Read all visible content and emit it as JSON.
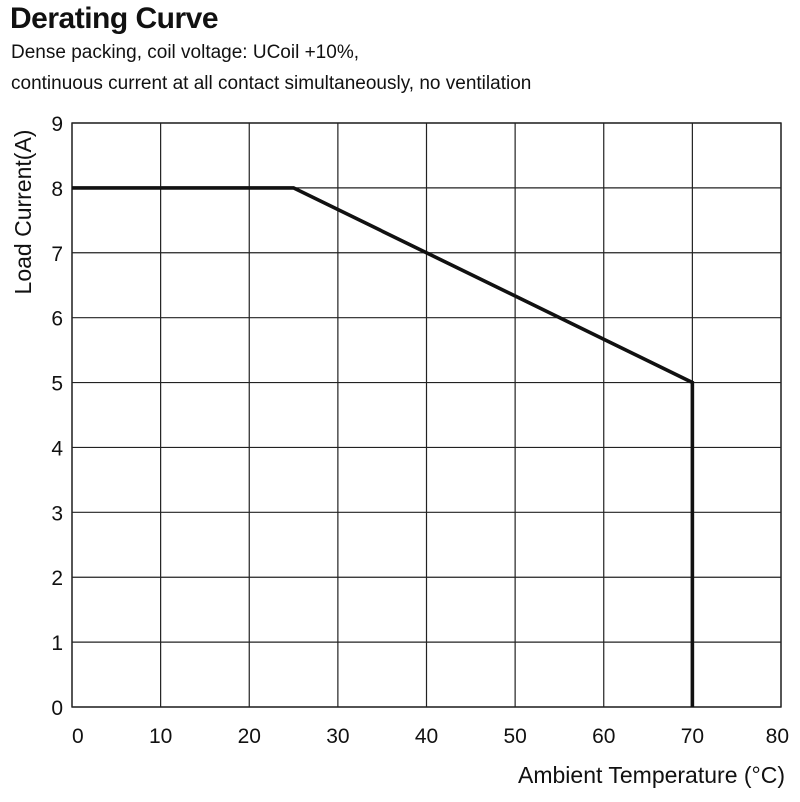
{
  "chart_data": {
    "type": "line",
    "title": "Derating Curve",
    "subtitle_lines": [
      "Dense packing, coil voltage: UCoil +10%,",
      "continuous current at all contact simultaneously, no ventilation"
    ],
    "xlabel": "Ambient Temperature (°C)",
    "ylabel": "Load Current(A)",
    "xlim": [
      0,
      80
    ],
    "ylim": [
      0,
      9
    ],
    "xticks": [
      0,
      10,
      20,
      30,
      40,
      50,
      60,
      70,
      80
    ],
    "yticks": [
      0,
      1,
      2,
      3,
      4,
      5,
      6,
      7,
      8,
      9
    ],
    "grid": true,
    "series": [
      {
        "x": [
          0,
          25,
          70,
          70
        ],
        "y": [
          8,
          8,
          5,
          0
        ]
      }
    ]
  }
}
